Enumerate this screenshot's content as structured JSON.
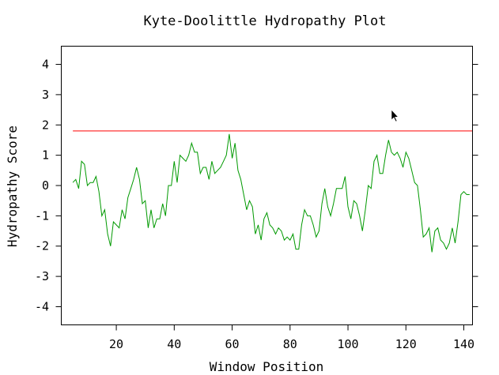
{
  "chart_data": {
    "type": "line",
    "title": "Kyte-Doolittle Hydropathy Plot",
    "xlabel": "Window Position",
    "ylabel": "Hydropathy Score",
    "xlim": [
      1,
      143
    ],
    "ylim": [
      -4.6,
      4.6
    ],
    "x_ticks": [
      20,
      40,
      60,
      80,
      100,
      120,
      140
    ],
    "y_ticks": [
      -4,
      -3,
      -2,
      -1,
      0,
      1,
      2,
      3,
      4
    ],
    "x_tick_labels": [
      "20",
      "40",
      "60",
      "80",
      "100",
      "120",
      "140"
    ],
    "y_tick_labels": [
      "-4",
      "-3",
      "-2",
      "-1",
      "0",
      "1",
      "2",
      "3",
      "4"
    ],
    "grid": false,
    "legend": "none",
    "series_color": "#009900",
    "threshold": {
      "y": 1.8,
      "x_range": [
        5,
        143
      ],
      "color": "#ff0000"
    },
    "series": [
      {
        "x": [
          5,
          6,
          7,
          8,
          9,
          10,
          11,
          12,
          13,
          14,
          15,
          16,
          17,
          18,
          19,
          20,
          21,
          22,
          23,
          24,
          25,
          26,
          27,
          28,
          29,
          30,
          31,
          32,
          33,
          34,
          35,
          36,
          37,
          38,
          39,
          40,
          41,
          42,
          43,
          44,
          45,
          46,
          47,
          48,
          49,
          50,
          51,
          52,
          53,
          54,
          55,
          56,
          57,
          58,
          59,
          60,
          61,
          62,
          63,
          64,
          65,
          66,
          67,
          68,
          69,
          70,
          71,
          72,
          73,
          74,
          75,
          76,
          77,
          78,
          79,
          80,
          81,
          82,
          83,
          84,
          85,
          86,
          87,
          88,
          89,
          90,
          91,
          92,
          93,
          94,
          95,
          96,
          97,
          98,
          99,
          100,
          101,
          102,
          103,
          104,
          105,
          106,
          107,
          108,
          109,
          110,
          111,
          112,
          113,
          114,
          115,
          116,
          117,
          118,
          119,
          120,
          121,
          122,
          123,
          124,
          125,
          126,
          127,
          128,
          129,
          130,
          131,
          132,
          133,
          134,
          135,
          136,
          137,
          138,
          139,
          140,
          141,
          142
        ],
        "y": [
          0.1,
          0.2,
          -0.1,
          0.8,
          0.7,
          0.0,
          0.1,
          0.1,
          0.3,
          -0.2,
          -1.0,
          -0.8,
          -1.6,
          -2.0,
          -1.2,
          -1.3,
          -1.4,
          -0.8,
          -1.1,
          -0.4,
          -0.1,
          0.2,
          0.6,
          0.2,
          -0.6,
          -0.5,
          -1.4,
          -0.8,
          -1.4,
          -1.1,
          -1.1,
          -0.6,
          -1.0,
          0.0,
          0.0,
          0.8,
          0.1,
          1.0,
          0.9,
          0.8,
          1.0,
          1.4,
          1.1,
          1.1,
          0.4,
          0.6,
          0.6,
          0.2,
          0.8,
          0.4,
          0.5,
          0.6,
          0.8,
          1.0,
          1.7,
          0.9,
          1.4,
          0.5,
          0.2,
          -0.3,
          -0.8,
          -0.5,
          -0.7,
          -1.6,
          -1.3,
          -1.8,
          -1.1,
          -0.9,
          -1.3,
          -1.4,
          -1.6,
          -1.4,
          -1.5,
          -1.8,
          -1.7,
          -1.8,
          -1.6,
          -2.1,
          -2.1,
          -1.3,
          -0.8,
          -1.0,
          -1.0,
          -1.3,
          -1.7,
          -1.5,
          -0.6,
          -0.1,
          -0.7,
          -1.0,
          -0.6,
          -0.1,
          -0.1,
          -0.1,
          0.3,
          -0.7,
          -1.1,
          -0.5,
          -0.6,
          -1.0,
          -1.5,
          -0.8,
          0.0,
          -0.1,
          0.8,
          1.0,
          0.4,
          0.4,
          1.0,
          1.5,
          1.1,
          1.0,
          1.1,
          0.9,
          0.6,
          1.1,
          0.9,
          0.5,
          0.1,
          0.0,
          -0.8,
          -1.7,
          -1.6,
          -1.4,
          -2.2,
          -1.5,
          -1.4,
          -1.8,
          -1.9,
          -2.1,
          -1.9,
          -1.4,
          -1.9,
          -1.2,
          -0.3,
          -0.2,
          -0.3,
          -0.3
        ]
      }
    ]
  }
}
